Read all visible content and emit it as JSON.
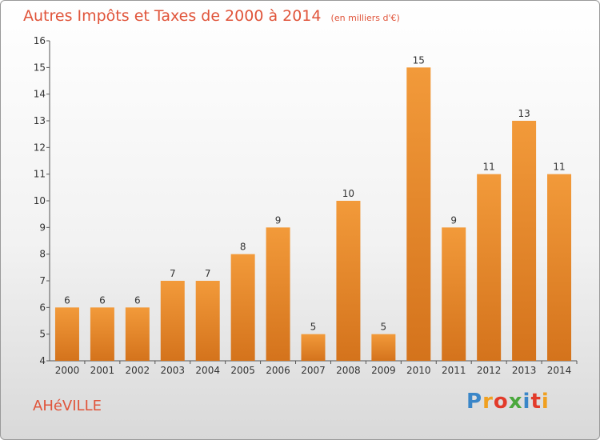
{
  "chart_data": {
    "type": "bar",
    "title": "Autres Impôts et Taxes de 2000 à 2014",
    "subtitle": "(en milliers d'€)",
    "categories": [
      "2000",
      "2001",
      "2002",
      "2003",
      "2004",
      "2005",
      "2006",
      "2007",
      "2008",
      "2009",
      "2010",
      "2011",
      "2012",
      "2013",
      "2014"
    ],
    "values": [
      6,
      6,
      6,
      7,
      7,
      8,
      9,
      5,
      10,
      5,
      15,
      9,
      11,
      13,
      11
    ],
    "ylim": [
      4,
      16
    ],
    "yticks": [
      4,
      5,
      6,
      7,
      8,
      9,
      10,
      11,
      12,
      13,
      14,
      15,
      16
    ],
    "grid": false,
    "bar_color": "#f29a3a",
    "bar_color_dark": "#d4731c"
  },
  "commune": "AHéVILLE",
  "logo": {
    "letters": [
      "P",
      "r",
      "o",
      "x",
      "i",
      "t",
      "i"
    ]
  }
}
